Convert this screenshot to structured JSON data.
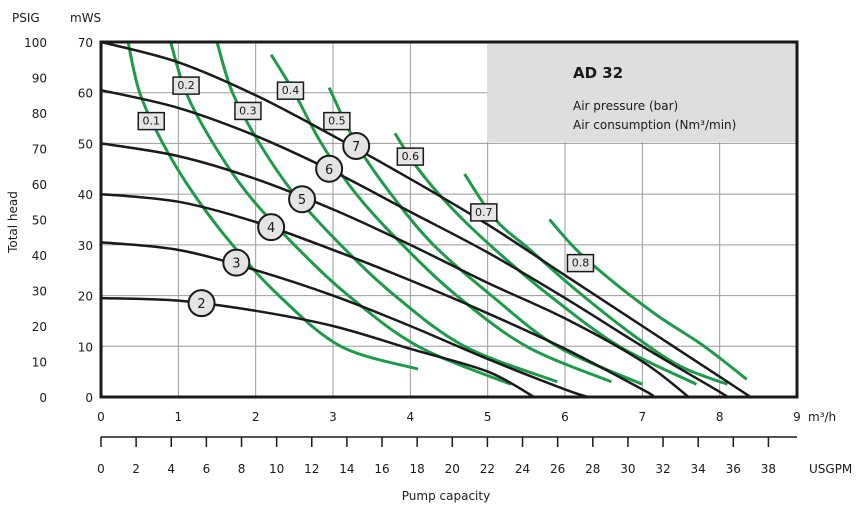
{
  "chart_data": {
    "type": "line",
    "title": "AD 32",
    "legend_lines": [
      "Air pressure (bar)",
      "Air consumption (Nm³/min)"
    ],
    "legend_placement": "top-right",
    "grid": true,
    "xlabel": "Pump capacity",
    "ylabel": "Total head",
    "x_unit_primary": "m³/h",
    "x_unit_secondary": "USGPM",
    "y_unit_primary": "mWS",
    "y_unit_secondary": "PSIG",
    "xlim": [
      0,
      9
    ],
    "ylim": [
      0,
      70
    ],
    "x_ticks": [
      "0",
      "1",
      "2",
      "3",
      "4",
      "5",
      "6",
      "7",
      "8",
      "9"
    ],
    "x_ticks_usgpm": [
      "0",
      "2",
      "4",
      "6",
      "8",
      "10",
      "12",
      "14",
      "16",
      "18",
      "20",
      "22",
      "24",
      "26",
      "28",
      "30",
      "32",
      "34",
      "36",
      "38"
    ],
    "y_ticks_mws": [
      "0",
      "10",
      "20",
      "30",
      "40",
      "50",
      "60",
      "70"
    ],
    "y_ticks_psig": [
      "0",
      "10",
      "20",
      "30",
      "40",
      "50",
      "60",
      "70",
      "80",
      "90",
      "100"
    ],
    "pressure_series": [
      {
        "name": "2",
        "label_at": [
          1.3,
          18.5
        ],
        "points": [
          [
            0,
            19.5
          ],
          [
            1,
            19
          ],
          [
            2,
            17
          ],
          [
            3,
            14
          ],
          [
            4,
            9.5
          ],
          [
            5,
            5
          ],
          [
            5.6,
            0
          ]
        ]
      },
      {
        "name": "3",
        "label_at": [
          1.75,
          26.5
        ],
        "points": [
          [
            0,
            30.5
          ],
          [
            1,
            29
          ],
          [
            2,
            25
          ],
          [
            3,
            20
          ],
          [
            4,
            14
          ],
          [
            5,
            7.5
          ],
          [
            6,
            1.5
          ],
          [
            6.3,
            0
          ]
        ]
      },
      {
        "name": "4",
        "label_at": [
          2.2,
          33.5
        ],
        "points": [
          [
            0,
            40
          ],
          [
            1,
            38.5
          ],
          [
            2,
            34.5
          ],
          [
            3,
            29
          ],
          [
            4,
            23
          ],
          [
            5,
            16.5
          ],
          [
            6,
            9.5
          ],
          [
            7,
            1.5
          ],
          [
            7.15,
            0
          ]
        ]
      },
      {
        "name": "5",
        "label_at": [
          2.6,
          39
        ],
        "points": [
          [
            0,
            50
          ],
          [
            1,
            47.5
          ],
          [
            2,
            43
          ],
          [
            3,
            37
          ],
          [
            4,
            30
          ],
          [
            5,
            22.5
          ],
          [
            6,
            15.5
          ],
          [
            7,
            7
          ],
          [
            7.6,
            0
          ]
        ]
      },
      {
        "name": "6",
        "label_at": [
          2.95,
          45
        ],
        "points": [
          [
            0,
            60.5
          ],
          [
            1,
            57
          ],
          [
            2,
            51.5
          ],
          [
            3,
            44.5
          ],
          [
            4,
            36.5
          ],
          [
            5,
            28.5
          ],
          [
            6,
            19.5
          ],
          [
            7,
            10
          ],
          [
            8,
            1
          ],
          [
            8.1,
            0
          ]
        ]
      },
      {
        "name": "7",
        "label_at": [
          3.3,
          49.5
        ],
        "points": [
          [
            0,
            70
          ],
          [
            1,
            66
          ],
          [
            2,
            59.5
          ],
          [
            3,
            51.5
          ],
          [
            4,
            43
          ],
          [
            5,
            34
          ],
          [
            6,
            24
          ],
          [
            7,
            14
          ],
          [
            8,
            4
          ],
          [
            8.4,
            0
          ]
        ]
      }
    ],
    "air_series": [
      {
        "name": "0.1",
        "label_at": [
          0.65,
          54.5
        ],
        "points": [
          [
            0.35,
            70
          ],
          [
            0.5,
            60
          ],
          [
            0.8,
            50
          ],
          [
            1.2,
            40
          ],
          [
            1.7,
            30
          ],
          [
            2.3,
            20
          ],
          [
            3.1,
            10
          ],
          [
            4.1,
            5.5
          ]
        ]
      },
      {
        "name": "0.2",
        "label_at": [
          1.1,
          61.5
        ],
        "points": [
          [
            0.9,
            70
          ],
          [
            1.1,
            60
          ],
          [
            1.45,
            50
          ],
          [
            1.9,
            40
          ],
          [
            2.5,
            30
          ],
          [
            3.2,
            20
          ],
          [
            4.1,
            10
          ],
          [
            5.3,
            2.5
          ]
        ]
      },
      {
        "name": "0.3",
        "label_at": [
          1.9,
          56.5
        ],
        "points": [
          [
            1.5,
            70
          ],
          [
            1.7,
            60
          ],
          [
            2.05,
            50
          ],
          [
            2.5,
            40
          ],
          [
            3.1,
            30
          ],
          [
            3.8,
            20
          ],
          [
            4.7,
            10
          ],
          [
            5.9,
            3
          ]
        ]
      },
      {
        "name": "0.4",
        "label_at": [
          2.45,
          60.5
        ],
        "points": [
          [
            2.2,
            67.5
          ],
          [
            2.5,
            60
          ],
          [
            2.85,
            50
          ],
          [
            3.3,
            40
          ],
          [
            3.9,
            30
          ],
          [
            4.6,
            20
          ],
          [
            5.5,
            10
          ],
          [
            6.6,
            3
          ]
        ]
      },
      {
        "name": "0.5",
        "label_at": [
          3.05,
          54.5
        ],
        "points": [
          [
            2.95,
            61
          ],
          [
            3.3,
            50
          ],
          [
            3.75,
            40
          ],
          [
            4.3,
            30
          ],
          [
            5.05,
            20
          ],
          [
            5.9,
            10
          ],
          [
            7.0,
            2.5
          ]
        ]
      },
      {
        "name": "0.6",
        "label_at": [
          4.0,
          47.5
        ],
        "points": [
          [
            3.8,
            52
          ],
          [
            4.1,
            45
          ],
          [
            4.55,
            37
          ],
          [
            5.1,
            29
          ],
          [
            5.8,
            20
          ],
          [
            6.7,
            10
          ],
          [
            7.7,
            2.5
          ]
        ]
      },
      {
        "name": "0.7",
        "label_at": [
          4.95,
          36.5
        ],
        "points": [
          [
            4.7,
            44
          ],
          [
            5.1,
            35
          ],
          [
            5.55,
            29
          ],
          [
            6.15,
            21
          ],
          [
            6.9,
            12
          ],
          [
            7.5,
            6
          ],
          [
            8.1,
            2.5
          ]
        ]
      },
      {
        "name": "0.8",
        "label_at": [
          6.2,
          26.5
        ],
        "points": [
          [
            5.8,
            35
          ],
          [
            6.15,
            29
          ],
          [
            6.6,
            23
          ],
          [
            7.2,
            16
          ],
          [
            7.8,
            10
          ],
          [
            8.35,
            3.5
          ]
        ]
      }
    ],
    "colors": {
      "pressure_curve": "#1a1a1a",
      "air_curve": "#1f9a4a",
      "grid": "#9a9a9a",
      "legend_bg": "#dedede",
      "label_bg": "#e6e6e6"
    }
  }
}
